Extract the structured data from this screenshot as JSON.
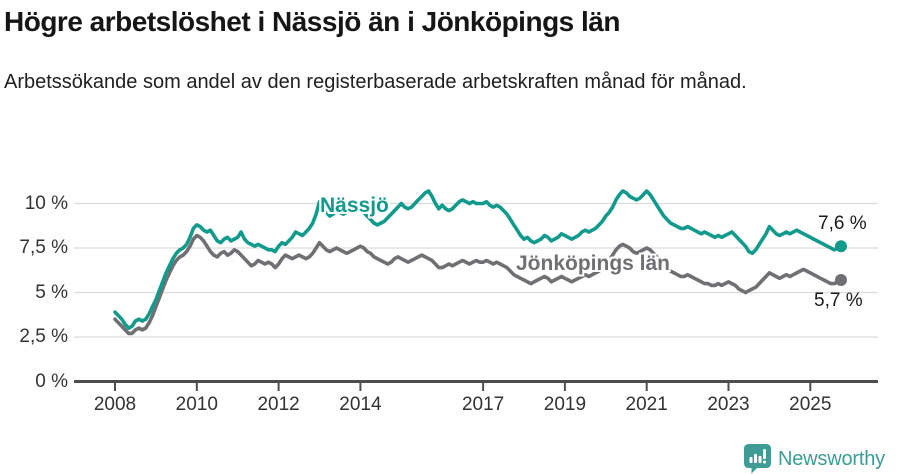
{
  "header": {
    "title": "Högre arbetslöshet i Nässjö än i Jönköpings län",
    "subtitle": "Arbetssökande som andel av den registerbaserade arbetskraften månad för månad."
  },
  "chart_data": {
    "type": "line",
    "unit": "%",
    "x_unit": "monthly",
    "x_range": [
      2008.0,
      2025.75
    ],
    "ylim": [
      0,
      11
    ],
    "grid": true,
    "yticks": [
      {
        "v": 0,
        "label": "0 %"
      },
      {
        "v": 2.5,
        "label": "2,5 %"
      },
      {
        "v": 5,
        "label": "5 %"
      },
      {
        "v": 7.5,
        "label": "7,5 %"
      },
      {
        "v": 10,
        "label": "10 %"
      }
    ],
    "xticks": [
      {
        "v": 2008,
        "label": "2008"
      },
      {
        "v": 2010,
        "label": "2010"
      },
      {
        "v": 2012,
        "label": "2012"
      },
      {
        "v": 2014,
        "label": "2014"
      },
      {
        "v": 2017,
        "label": "2017"
      },
      {
        "v": 2019,
        "label": "2019"
      },
      {
        "v": 2021,
        "label": "2021"
      },
      {
        "v": 2023,
        "label": "2023"
      },
      {
        "v": 2025,
        "label": "2025"
      }
    ],
    "series": [
      {
        "name": "Nässjö",
        "color": "#129A8D",
        "end_label": "7,6 %",
        "end_value": 7.6,
        "start_year": 2008,
        "values": [
          3.9,
          3.7,
          3.5,
          3.2,
          3.0,
          3.1,
          3.4,
          3.5,
          3.4,
          3.5,
          3.8,
          4.2,
          4.6,
          5.1,
          5.6,
          6.1,
          6.5,
          6.9,
          7.2,
          7.4,
          7.5,
          7.7,
          8.1,
          8.6,
          8.8,
          8.7,
          8.5,
          8.4,
          8.5,
          8.2,
          7.9,
          7.8,
          8.0,
          8.1,
          7.9,
          8.0,
          8.1,
          8.4,
          8.0,
          7.8,
          7.7,
          7.6,
          7.7,
          7.6,
          7.5,
          7.4,
          7.4,
          7.3,
          7.6,
          7.8,
          7.7,
          7.9,
          8.1,
          8.4,
          8.3,
          8.2,
          8.4,
          8.6,
          8.9,
          9.4,
          10.1,
          9.8,
          9.5,
          9.3,
          9.4,
          9.6,
          9.5,
          9.4,
          9.5,
          9.6,
          9.5,
          9.6,
          9.7,
          9.5,
          9.3,
          9.1,
          8.9,
          8.8,
          8.9,
          9.0,
          9.2,
          9.4,
          9.6,
          9.8,
          10.0,
          9.8,
          9.7,
          9.8,
          10.0,
          10.2,
          10.4,
          10.6,
          10.7,
          10.4,
          10.0,
          9.7,
          9.9,
          9.7,
          9.6,
          9.7,
          9.9,
          10.1,
          10.2,
          10.1,
          10.0,
          10.1,
          10.0,
          10.0,
          10.0,
          10.1,
          9.9,
          9.8,
          9.9,
          9.8,
          9.6,
          9.4,
          9.1,
          8.8,
          8.5,
          8.2,
          8.0,
          8.1,
          7.9,
          7.8,
          7.9,
          8.0,
          8.2,
          8.1,
          7.9,
          8.0,
          8.1,
          8.3,
          8.2,
          8.1,
          8.0,
          8.1,
          8.2,
          8.4,
          8.5,
          8.4,
          8.5,
          8.6,
          8.8,
          9.0,
          9.3,
          9.5,
          9.8,
          10.2,
          10.5,
          10.7,
          10.6,
          10.4,
          10.3,
          10.2,
          10.3,
          10.5,
          10.7,
          10.5,
          10.2,
          9.9,
          9.6,
          9.3,
          9.1,
          8.9,
          8.8,
          8.7,
          8.6,
          8.6,
          8.7,
          8.6,
          8.5,
          8.4,
          8.3,
          8.4,
          8.3,
          8.2,
          8.1,
          8.2,
          8.1,
          8.2,
          8.3,
          8.4,
          8.2,
          8.0,
          7.8,
          7.6,
          7.3,
          7.2,
          7.4,
          7.7,
          8.0,
          8.3,
          8.7,
          8.5,
          8.3,
          8.2,
          8.3,
          8.4,
          8.3,
          8.4,
          8.5,
          8.4,
          8.3,
          8.2,
          8.1,
          8.0,
          7.9,
          7.8,
          7.7,
          7.6,
          7.5,
          7.4,
          7.5,
          7.6
        ]
      },
      {
        "name": "Jönköpings län",
        "color": "#707074",
        "end_label": "5,7 %",
        "end_value": 5.7,
        "start_year": 2008,
        "values": [
          3.5,
          3.3,
          3.1,
          2.9,
          2.7,
          2.7,
          2.9,
          3.0,
          2.9,
          3.0,
          3.3,
          3.7,
          4.2,
          4.7,
          5.2,
          5.7,
          6.1,
          6.5,
          6.8,
          7.0,
          7.1,
          7.3,
          7.6,
          8.0,
          8.2,
          8.1,
          7.9,
          7.6,
          7.3,
          7.1,
          7.0,
          7.2,
          7.3,
          7.1,
          7.2,
          7.4,
          7.3,
          7.1,
          6.9,
          6.7,
          6.5,
          6.6,
          6.8,
          6.7,
          6.6,
          6.7,
          6.6,
          6.4,
          6.6,
          6.9,
          7.1,
          7.0,
          6.9,
          7.0,
          7.1,
          7.0,
          6.9,
          7.0,
          7.2,
          7.5,
          7.8,
          7.6,
          7.4,
          7.3,
          7.4,
          7.5,
          7.4,
          7.3,
          7.2,
          7.3,
          7.4,
          7.5,
          7.6,
          7.5,
          7.3,
          7.2,
          7.0,
          6.9,
          6.8,
          6.7,
          6.6,
          6.7,
          6.9,
          7.0,
          6.9,
          6.8,
          6.7,
          6.8,
          6.9,
          7.0,
          7.1,
          7.0,
          6.9,
          6.8,
          6.6,
          6.4,
          6.4,
          6.5,
          6.6,
          6.5,
          6.6,
          6.7,
          6.8,
          6.7,
          6.6,
          6.7,
          6.8,
          6.7,
          6.7,
          6.8,
          6.7,
          6.6,
          6.7,
          6.6,
          6.5,
          6.4,
          6.2,
          6.0,
          5.9,
          5.8,
          5.7,
          5.6,
          5.5,
          5.6,
          5.7,
          5.8,
          5.9,
          5.8,
          5.6,
          5.7,
          5.8,
          5.9,
          5.8,
          5.7,
          5.6,
          5.7,
          5.8,
          5.9,
          6.0,
          5.9,
          6.0,
          6.1,
          6.2,
          6.4,
          6.6,
          6.8,
          7.1,
          7.4,
          7.6,
          7.7,
          7.6,
          7.5,
          7.3,
          7.2,
          7.3,
          7.4,
          7.5,
          7.4,
          7.2,
          7.0,
          6.8,
          6.6,
          6.4,
          6.2,
          6.1,
          6.0,
          5.9,
          5.9,
          6.0,
          5.9,
          5.8,
          5.7,
          5.6,
          5.5,
          5.5,
          5.4,
          5.4,
          5.5,
          5.4,
          5.5,
          5.6,
          5.5,
          5.4,
          5.2,
          5.1,
          5.0,
          5.1,
          5.2,
          5.3,
          5.5,
          5.7,
          5.9,
          6.1,
          6.0,
          5.9,
          5.8,
          5.9,
          6.0,
          5.9,
          6.0,
          6.1,
          6.2,
          6.3,
          6.2,
          6.1,
          6.0,
          5.9,
          5.8,
          5.7,
          5.6,
          5.5,
          5.5,
          5.6,
          5.7
        ]
      }
    ],
    "colors": {
      "grid": "#DCDCDC",
      "axis": "#4D4D4D",
      "tick_text": "#333333"
    }
  },
  "footer": {
    "brand": "Newsworthy",
    "logo_color": "#3E9C95"
  }
}
